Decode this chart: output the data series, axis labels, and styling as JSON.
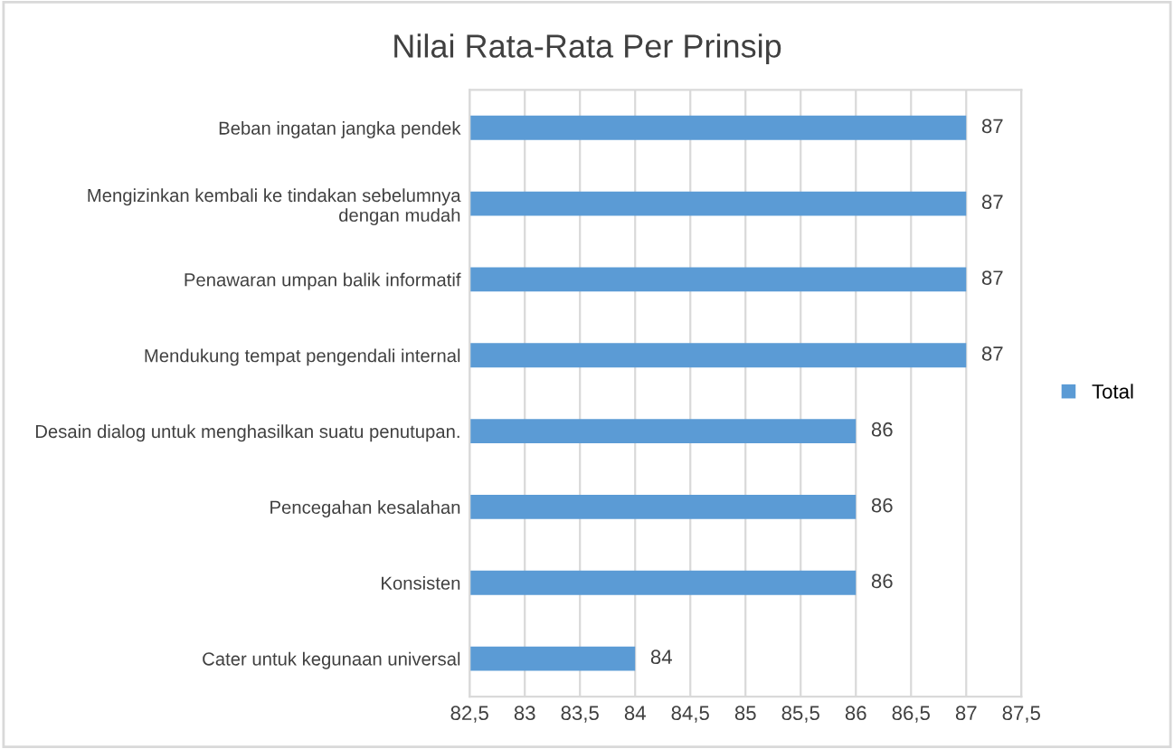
{
  "chart_data": {
    "type": "bar",
    "orientation": "horizontal",
    "title": "Nilai Rata-Rata Per Prinsip",
    "categories": [
      "Beban ingatan jangka pendek",
      "Mengizinkan kembali ke tindakan sebelumnya\ndengan mudah",
      "Penawaran umpan balik informatif",
      "Mendukung tempat pengendali internal",
      "Desain dialog untuk menghasilkan suatu penutupan.",
      "Pencegahan kesalahan",
      "Konsisten",
      "Cater untuk kegunaan universal"
    ],
    "series": [
      {
        "name": "Total",
        "color": "#5b9bd5",
        "values": [
          87,
          87,
          87,
          87,
          86,
          86,
          86,
          84
        ]
      }
    ],
    "xlim": [
      82.5,
      87.5
    ],
    "xticks": [
      {
        "value": 82.5,
        "label": "82,5"
      },
      83,
      {
        "value": 83.5,
        "label": "83,5"
      },
      84,
      {
        "value": 84.5,
        "label": "84,5"
      },
      85,
      {
        "value": 85.5,
        "label": "85,5"
      },
      86,
      {
        "value": 86.5,
        "label": "86,5"
      },
      87,
      {
        "value": 87.5,
        "label": "87,5"
      }
    ],
    "grid": "x",
    "legend": "right",
    "data_labels": true
  }
}
